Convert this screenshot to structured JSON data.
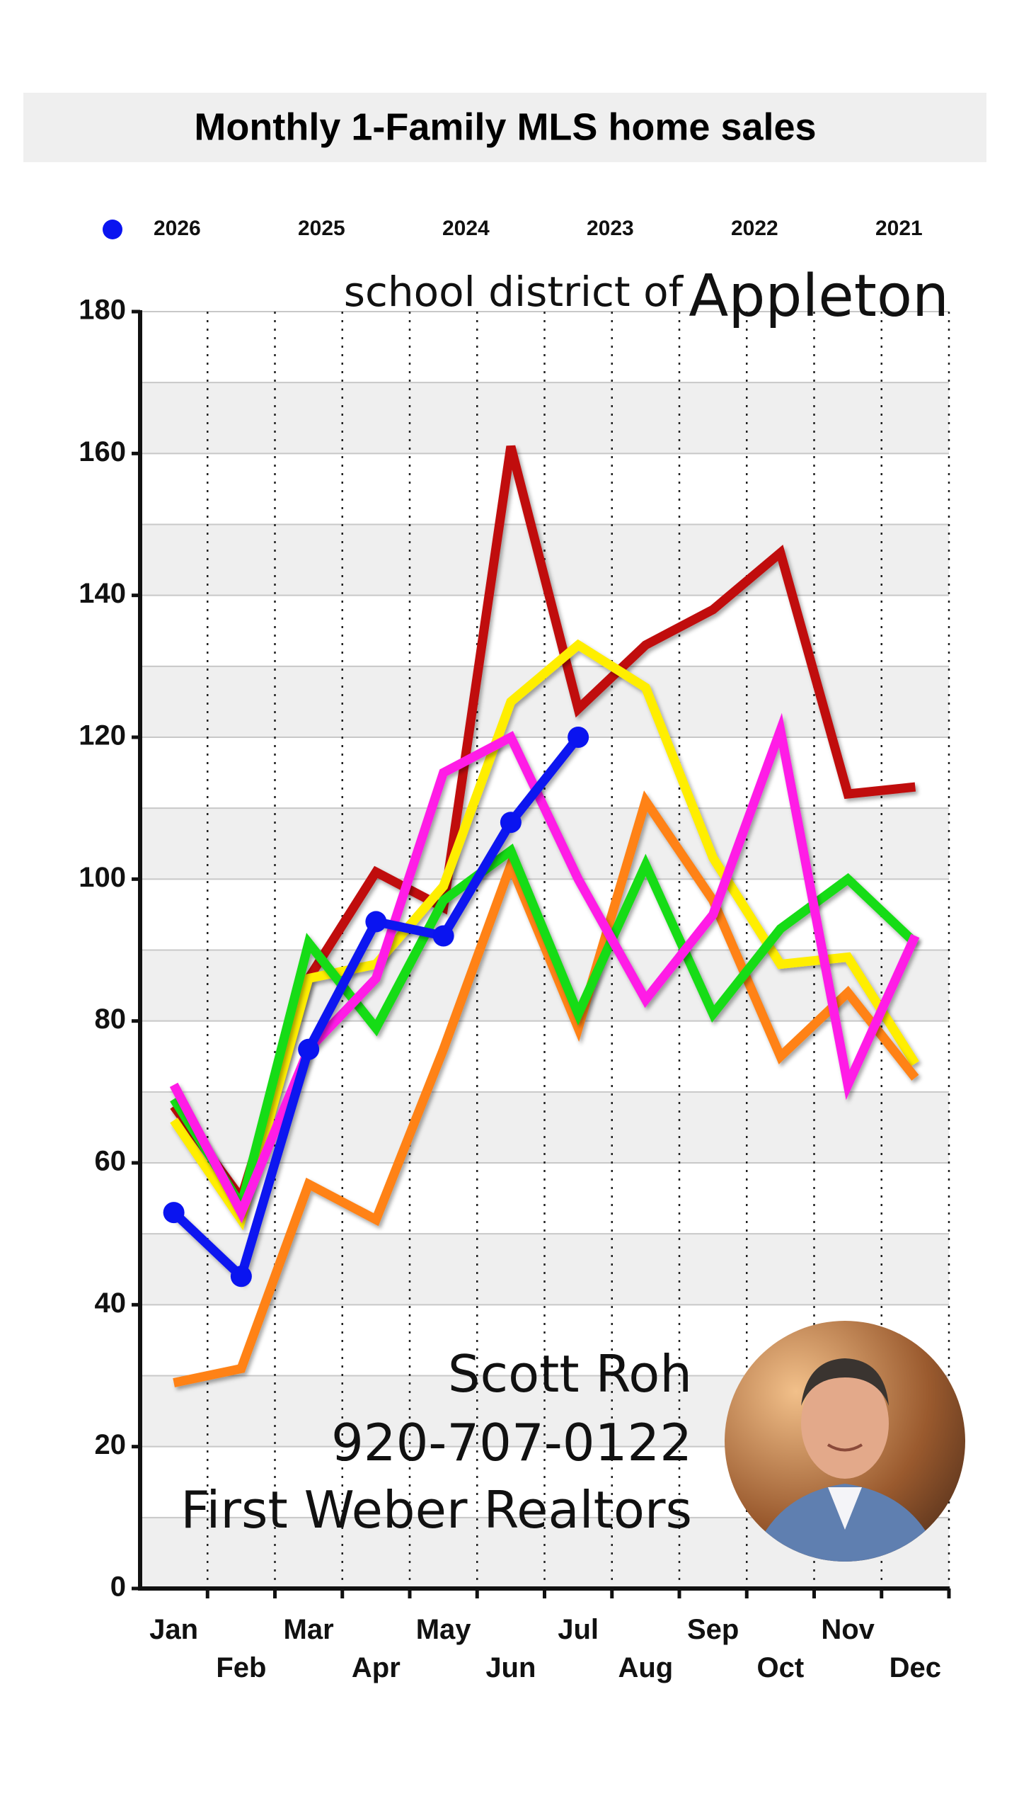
{
  "chart_data": {
    "type": "line",
    "title": "Monthly 1-Family MLS home sales",
    "annotations": [
      "school district of",
      "Appleton",
      "Scott Roh",
      "920-707-0122",
      "First Weber Realtors"
    ],
    "categories": [
      "Jan",
      "Feb",
      "Mar",
      "Apr",
      "May",
      "Jun",
      "Jul",
      "Aug",
      "Sep",
      "Oct",
      "Nov",
      "Dec"
    ],
    "series": [
      {
        "name": "2026",
        "color": "#0a14f0",
        "marker": "circle",
        "values": [
          53,
          44,
          76,
          94,
          92,
          108,
          120,
          null,
          null,
          null,
          null,
          null
        ]
      },
      {
        "name": "2025",
        "color": "#ff1ee6",
        "values": [
          71,
          53,
          76,
          86,
          115,
          120,
          100,
          83,
          95,
          121,
          71,
          92
        ]
      },
      {
        "name": "2024",
        "color": "#14dc14",
        "values": [
          69,
          54,
          91,
          79,
          97,
          104,
          81,
          102,
          81,
          93,
          100,
          91
        ]
      },
      {
        "name": "2023",
        "color": "#ff8214",
        "values": [
          29,
          31,
          57,
          52,
          76,
          102,
          79,
          111,
          97,
          75,
          84,
          72
        ]
      },
      {
        "name": "2022",
        "color": "#ffee00",
        "values": [
          66,
          52,
          86,
          88,
          99,
          125,
          133,
          127,
          103,
          88,
          89,
          74
        ]
      },
      {
        "name": "2021",
        "color": "#c00a0a",
        "values": [
          68,
          55,
          86,
          101,
          96,
          161,
          124,
          133,
          138,
          146,
          112,
          113
        ]
      }
    ],
    "ylim": [
      0,
      180
    ],
    "yticks": [
      0,
      20,
      40,
      60,
      80,
      100,
      120,
      140,
      160,
      180
    ],
    "grid": true
  }
}
